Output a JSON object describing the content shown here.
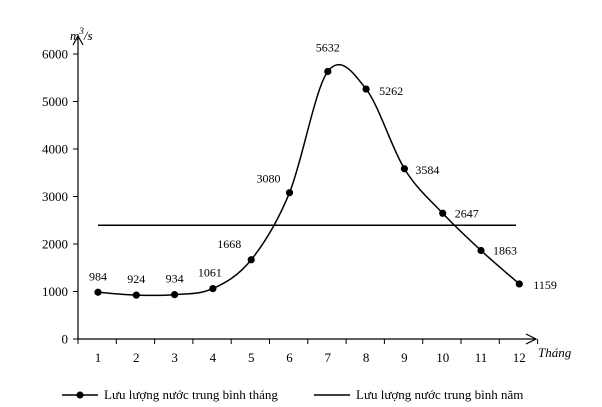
{
  "chart_data": {
    "type": "line",
    "ylabel": "m3/s",
    "ylabel_base": "m",
    "ylabel_sup": "3",
    "ylabel_tail": "/s",
    "xlabel": "Tháng",
    "x": [
      "1",
      "2",
      "3",
      "4",
      "5",
      "6",
      "7",
      "8",
      "9",
      "10",
      "11",
      "12"
    ],
    "ylim": [
      0,
      6000
    ],
    "yticks": [
      "0",
      "1000",
      "2000",
      "3000",
      "4000",
      "5000",
      "6000"
    ],
    "grid": false,
    "legend_position": "bottom",
    "series": [
      {
        "name": "Lưu lượng nước trung bình tháng",
        "style": "smooth-line-with-markers",
        "values": [
          984,
          924,
          934,
          1061,
          1668,
          3080,
          5632,
          5262,
          3584,
          2647,
          1863,
          1159
        ],
        "labels": [
          "984",
          "924",
          "934",
          "1061",
          "1668",
          "3080",
          "5632",
          "5262",
          "3584",
          "2647",
          "1863",
          "1159"
        ]
      },
      {
        "name": "Lưu lượng nước trung bình năm",
        "style": "horizontal-line",
        "value": 2394
      }
    ],
    "colors": {
      "line": "#000000",
      "background": "#ffffff"
    }
  }
}
